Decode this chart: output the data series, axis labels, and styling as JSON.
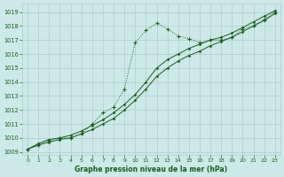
{
  "title": "Graphe pression niveau de la mer (hPa)",
  "background_color": "#cde8e8",
  "grid_color": "#b0cccc",
  "line_color": "#1a5c1a",
  "xlim": [
    -0.5,
    23.5
  ],
  "ylim": [
    1008.8,
    1019.6
  ],
  "yticks": [
    1009,
    1010,
    1011,
    1012,
    1013,
    1014,
    1015,
    1016,
    1017,
    1018,
    1019
  ],
  "xticks": [
    0,
    1,
    2,
    3,
    4,
    5,
    6,
    7,
    8,
    9,
    10,
    11,
    12,
    13,
    14,
    15,
    16,
    17,
    18,
    19,
    20,
    21,
    22,
    23
  ],
  "series_solid1": [
    1009.2,
    1009.6,
    1009.9,
    1010.0,
    1010.2,
    1010.5,
    1010.9,
    1011.3,
    1011.8,
    1012.4,
    1013.1,
    1014.0,
    1015.0,
    1015.6,
    1016.0,
    1016.4,
    1016.7,
    1017.0,
    1017.2,
    1017.5,
    1017.9,
    1018.3,
    1018.7,
    1019.1
  ],
  "series_solid2": [
    1009.2,
    1009.5,
    1009.7,
    1009.9,
    1010.0,
    1010.3,
    1010.6,
    1011.0,
    1011.4,
    1012.0,
    1012.7,
    1013.5,
    1014.4,
    1015.0,
    1015.5,
    1015.9,
    1016.2,
    1016.6,
    1016.9,
    1017.2,
    1017.6,
    1018.0,
    1018.4,
    1018.9
  ],
  "series_dotted": [
    1009.2,
    1009.5,
    1009.8,
    1010.0,
    1010.0,
    1010.3,
    1011.0,
    1011.8,
    1012.2,
    1013.5,
    1016.8,
    1017.7,
    1018.2,
    1017.8,
    1017.3,
    1017.1,
    1016.8,
    1017.0,
    1017.0,
    1017.2,
    1017.8,
    1018.0,
    1018.5,
    1019.0
  ]
}
